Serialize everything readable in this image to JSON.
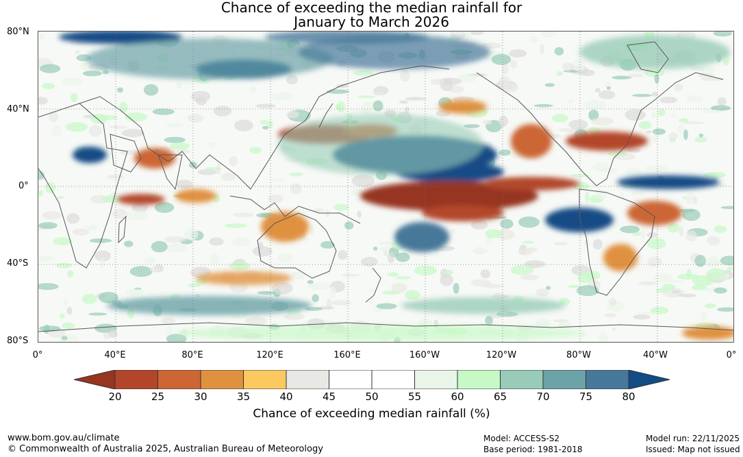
{
  "title": {
    "line1": "Chance of exceeding the median rainfall for",
    "line2": "January to March 2026"
  },
  "map": {
    "lat_labels": [
      "80°N",
      "40°N",
      "0°",
      "40°S",
      "80°S"
    ],
    "lon_labels": [
      "0°",
      "40°E",
      "80°E",
      "120°E",
      "160°E",
      "160°W",
      "120°W",
      "80°W",
      "40°W",
      "0°"
    ]
  },
  "colorbar": {
    "title": "Chance of exceeding median rainfall (%)",
    "ticks": [
      "20",
      "25",
      "30",
      "35",
      "40",
      "45",
      "50",
      "55",
      "60",
      "65",
      "70",
      "75",
      "80"
    ],
    "colors": [
      "#b3462a",
      "#cc6634",
      "#e0913f",
      "#fcc860",
      "#e8e8e4",
      "#ffffff",
      "#ffffff",
      "#e9f5e9",
      "#c7f9c7",
      "#98ccb8",
      "#6ca3a8",
      "#47789a"
    ],
    "low_color": "#963520",
    "high_color": "#134b85"
  },
  "footer": {
    "url": "www.bom.gov.au/climate",
    "copyright": "© Commonwealth of Australia 2025, Australian Bureau of Meteorology",
    "model": "Model: ACCESS-S2",
    "base_period": "Base period: 1981-2018",
    "model_run": "Model run: 22/11/2025",
    "issued": "Issued: Map not issued"
  }
}
